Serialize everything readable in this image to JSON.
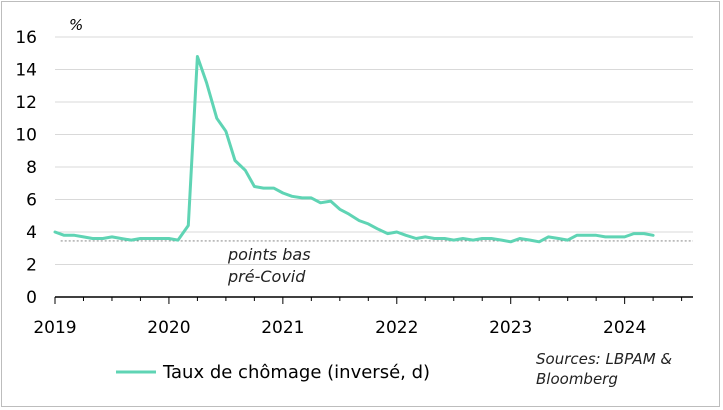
{
  "chart_data": {
    "type": "line",
    "title": "",
    "unit_label": "%",
    "ylim": [
      0,
      16
    ],
    "y_ticks": [
      0,
      2,
      4,
      6,
      8,
      10,
      12,
      14,
      16
    ],
    "x_ticks": [
      "2019",
      "2020",
      "2021",
      "2022",
      "2023",
      "2024"
    ],
    "grid": "horizontal",
    "reference_line": {
      "y": 3.45,
      "label_lines": [
        "points bas",
        "pré-Covid"
      ]
    },
    "series": [
      {
        "name": "Taux de chômage (inversé, d)",
        "color": "#5fd4b4",
        "x": [
          2019.0,
          2019.08,
          2019.17,
          2019.25,
          2019.33,
          2019.42,
          2019.5,
          2019.58,
          2019.67,
          2019.75,
          2019.83,
          2019.92,
          2020.0,
          2020.08,
          2020.17,
          2020.25,
          2020.33,
          2020.42,
          2020.5,
          2020.58,
          2020.67,
          2020.75,
          2020.83,
          2020.92,
          2021.0,
          2021.08,
          2021.17,
          2021.25,
          2021.33,
          2021.42,
          2021.5,
          2021.58,
          2021.67,
          2021.75,
          2021.83,
          2021.92,
          2022.0,
          2022.08,
          2022.17,
          2022.25,
          2022.33,
          2022.42,
          2022.5,
          2022.58,
          2022.67,
          2022.75,
          2022.83,
          2022.92,
          2023.0,
          2023.08,
          2023.17,
          2023.25,
          2023.33,
          2023.42,
          2023.5,
          2023.58,
          2023.67,
          2023.75,
          2023.83,
          2023.92,
          2024.0,
          2024.08,
          2024.17,
          2024.25
        ],
        "values": [
          4.0,
          3.8,
          3.8,
          3.7,
          3.6,
          3.6,
          3.7,
          3.6,
          3.5,
          3.6,
          3.6,
          3.6,
          3.6,
          3.5,
          4.4,
          14.8,
          13.2,
          11.0,
          10.2,
          8.4,
          7.8,
          6.8,
          6.7,
          6.7,
          6.4,
          6.2,
          6.1,
          6.1,
          5.8,
          5.9,
          5.4,
          5.1,
          4.7,
          4.5,
          4.2,
          3.9,
          4.0,
          3.8,
          3.6,
          3.7,
          3.6,
          3.6,
          3.5,
          3.6,
          3.5,
          3.6,
          3.6,
          3.5,
          3.4,
          3.6,
          3.5,
          3.4,
          3.7,
          3.6,
          3.5,
          3.8,
          3.8,
          3.8,
          3.7,
          3.7,
          3.7,
          3.9,
          3.9,
          3.8
        ]
      }
    ],
    "source_lines": [
      "Sources: LBPAM &",
      "Bloomberg"
    ]
  }
}
